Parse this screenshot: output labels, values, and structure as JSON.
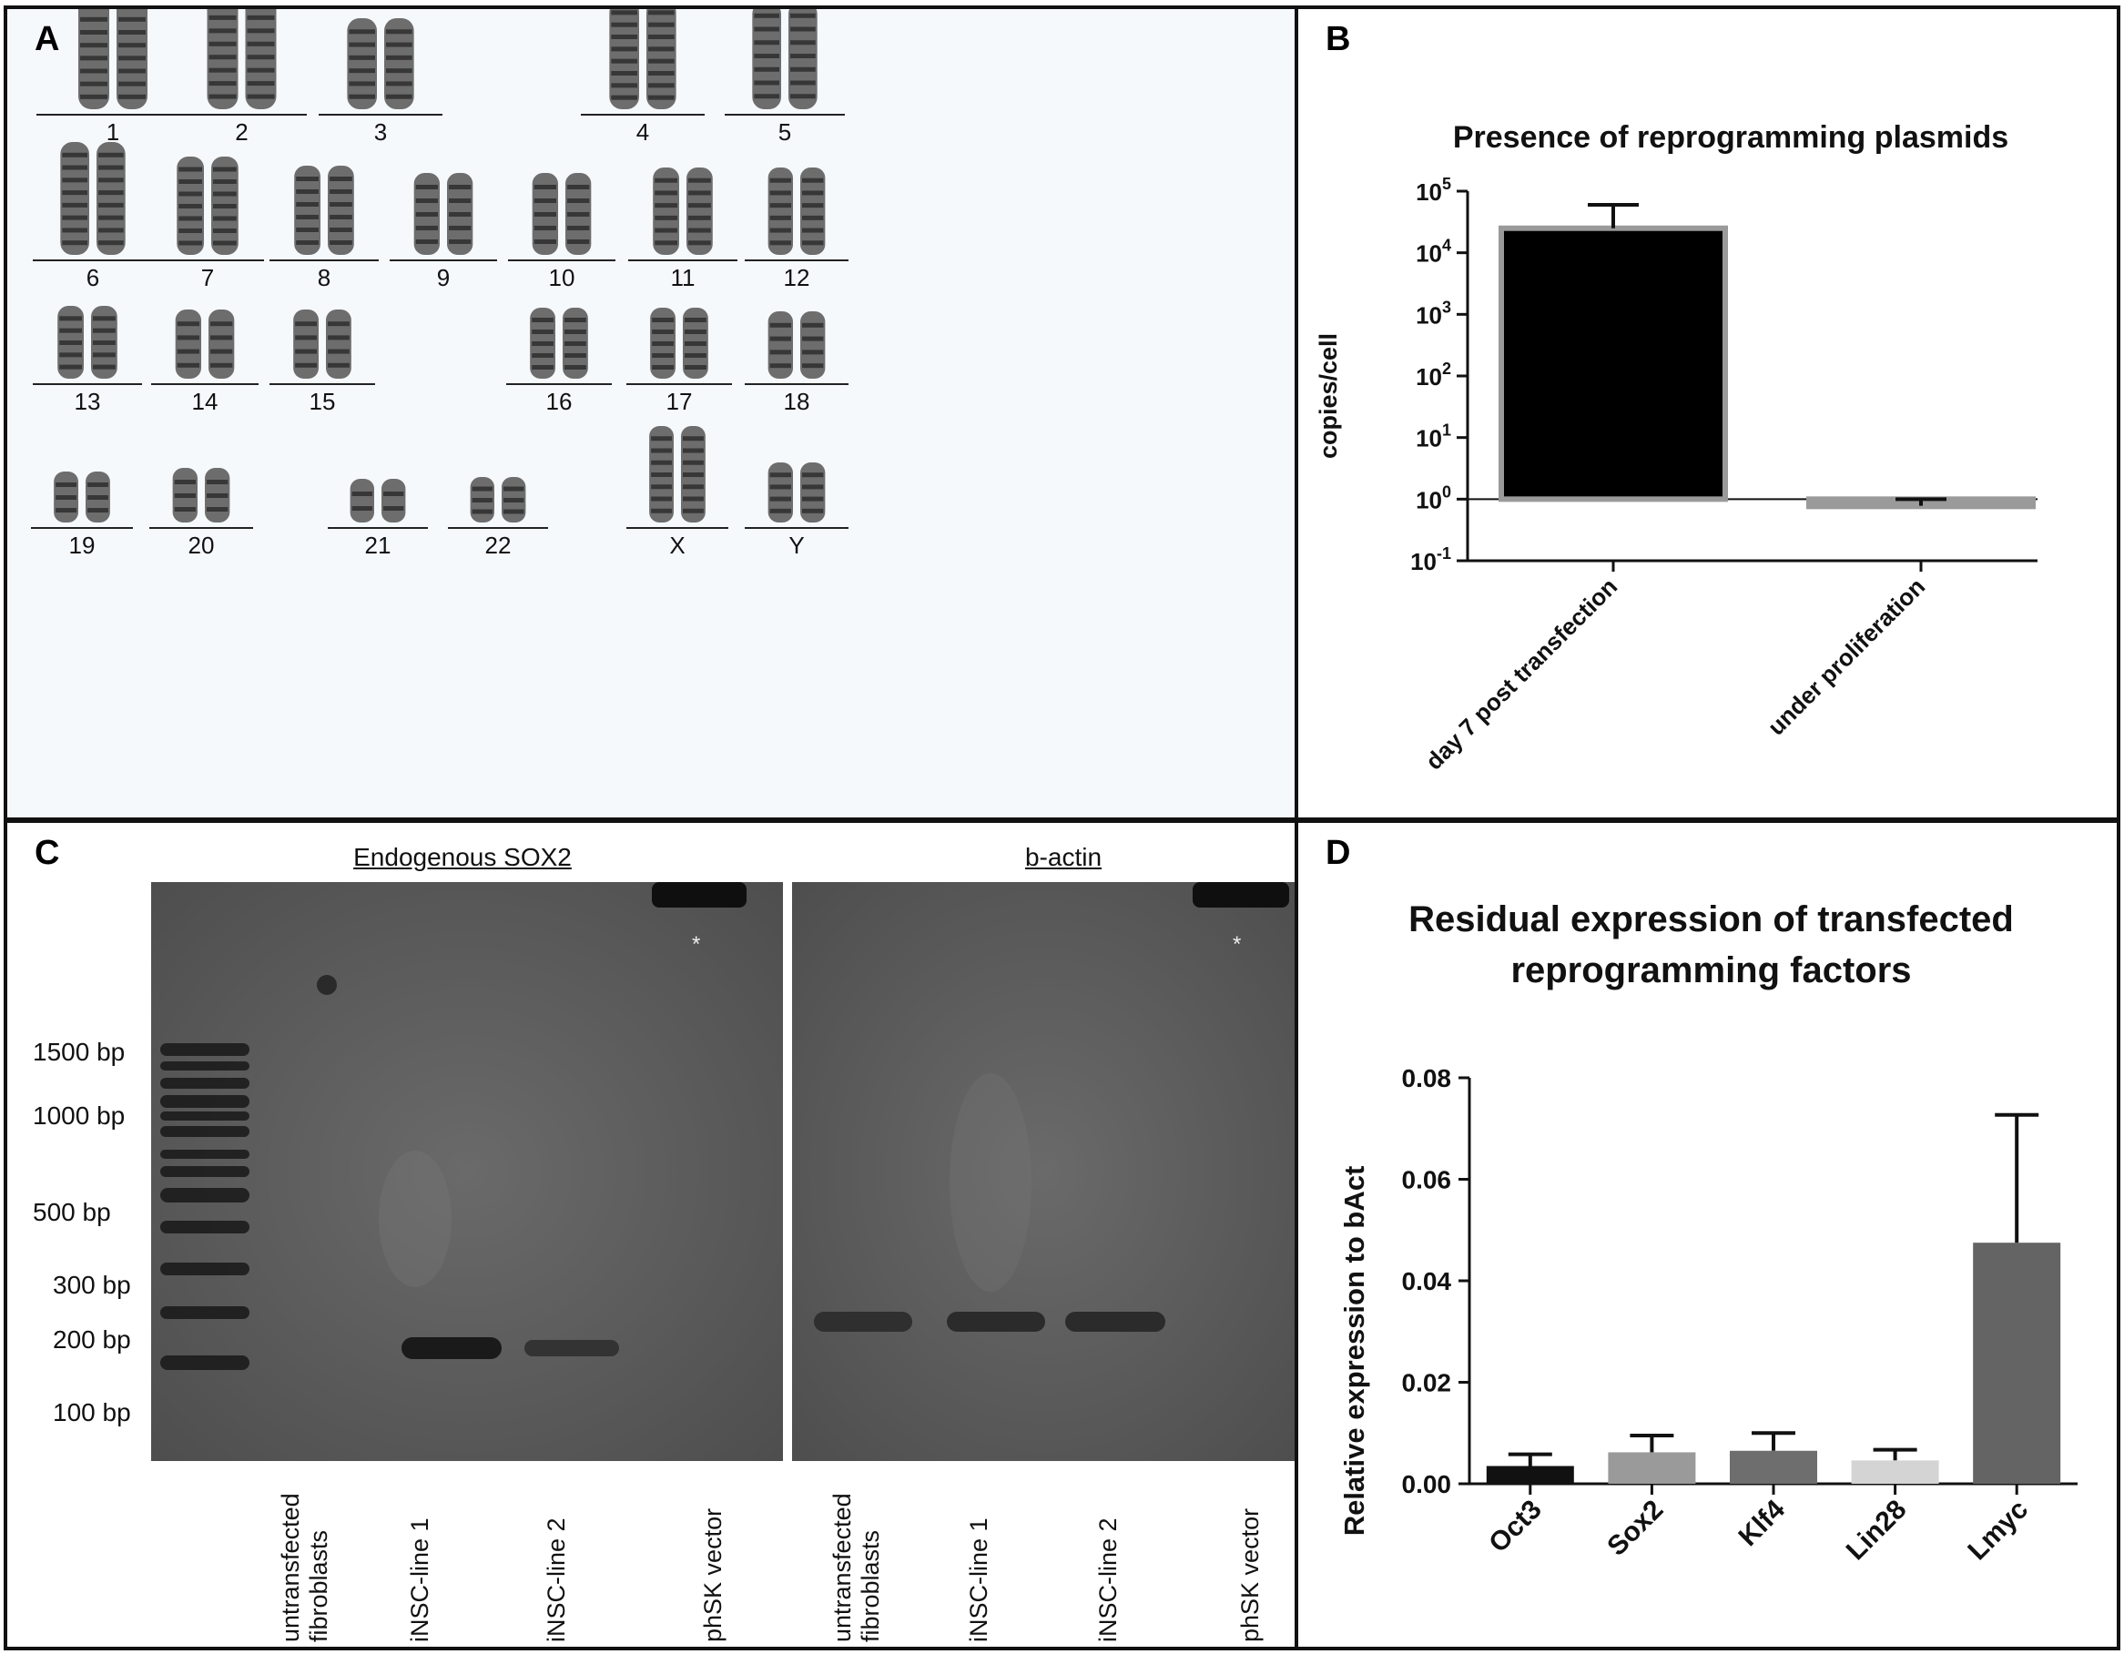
{
  "panels": {
    "A": "A",
    "B": "B",
    "C": "C",
    "D": "D"
  },
  "karyotype": {
    "labels": [
      "1",
      "2",
      "3",
      "4",
      "5",
      "6",
      "7",
      "8",
      "9",
      "10",
      "11",
      "12",
      "13",
      "14",
      "15",
      "16",
      "17",
      "18",
      "19",
      "20",
      "21",
      "22",
      "X",
      "Y"
    ]
  },
  "gel": {
    "left_title": "Endogenous SOX2",
    "right_title": "b-actin",
    "ladder_labels": [
      "1500 bp",
      "1000 bp",
      "500 bp",
      "300 bp",
      "200 bp",
      "100 bp"
    ],
    "lanes": [
      "untransfected\nfibroblasts",
      "iNSC-line 1",
      "iNSC-line 2",
      "phSK vector"
    ],
    "asterisk": "*"
  },
  "chart_data": [
    {
      "type": "bar",
      "title": "Presence of reprogramming plasmids",
      "ylabel": "copies/cell",
      "xlabel": "",
      "y_scale": "log",
      "ylim": [
        0.1,
        100000
      ],
      "y_tick_labels": [
        "10-1",
        "100",
        "101",
        "102",
        "103",
        "104",
        "105"
      ],
      "categories": [
        "day 7 post transfection",
        "under proliferation"
      ],
      "values": [
        25000,
        0.78
      ],
      "error_upper": [
        60000,
        1.0
      ],
      "colors": [
        "#000000",
        "#9a9a9a"
      ]
    },
    {
      "type": "bar",
      "title": "Residual expression of transfected reprogramming factors",
      "ylabel": "Relative expression to bAct",
      "xlabel": "",
      "ylim": [
        0,
        0.08
      ],
      "y_ticks": [
        "0.00",
        "0.02",
        "0.04",
        "0.06",
        "0.08"
      ],
      "categories": [
        "Oct3",
        "Sox2",
        "Klf4",
        "Lin28",
        "Lmyc"
      ],
      "values": [
        0.0035,
        0.0062,
        0.0065,
        0.0046,
        0.0475
      ],
      "error_upper": [
        0.0058,
        0.0095,
        0.01,
        0.0067,
        0.0727
      ],
      "colors": [
        "#111111",
        "#9a9a9a",
        "#6e6e6e",
        "#d4d4d4",
        "#646464"
      ]
    }
  ]
}
